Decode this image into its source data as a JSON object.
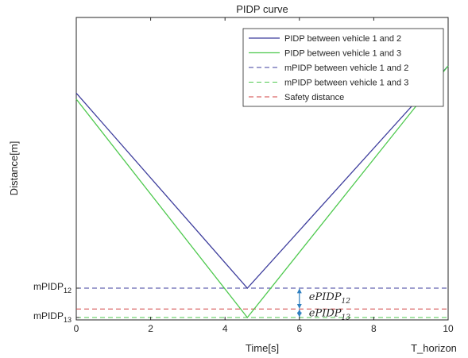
{
  "chart_data": {
    "type": "line",
    "title": "PIDP curve",
    "xlabel": "Time[s]",
    "ylabel": "Distance[m]",
    "xlim": [
      0,
      10
    ],
    "ylim": [
      0,
      100
    ],
    "xticks": [
      0,
      2,
      4,
      6,
      8,
      10
    ],
    "grid": false,
    "legend_position": "top-right",
    "extra_label": "T_horizon",
    "series": [
      {
        "name": "PIDP between vehicle 1 and 2",
        "color": "#3c3c9c",
        "style": "solid",
        "x": [
          0,
          4.6,
          10
        ],
        "y": [
          75,
          10.5,
          84
        ]
      },
      {
        "name": "PIDP between vehicle 1 and 3",
        "color": "#4ec94e",
        "style": "solid",
        "x": [
          0,
          4.6,
          10
        ],
        "y": [
          73,
          0.8,
          84
        ]
      },
      {
        "name": "mPIDP between vehicle 1 and 2",
        "color": "#3c3c9c",
        "style": "dashed",
        "x": [
          0,
          10
        ],
        "y": [
          10.5,
          10.5
        ]
      },
      {
        "name": "mPIDP between vehicle 1 and 3",
        "color": "#4ec94e",
        "style": "dashed",
        "x": [
          0,
          10
        ],
        "y": [
          0.8,
          0.8
        ]
      },
      {
        "name": "Safety distance",
        "color": "#d04040",
        "style": "dashed",
        "x": [
          0,
          10
        ],
        "y": [
          3.6,
          3.6
        ]
      }
    ],
    "y_tick_labels": [
      {
        "base": "mPIDP",
        "sub": "12",
        "y": 10.5
      },
      {
        "base": "mPIDP",
        "sub": "13",
        "y": 0.8
      }
    ],
    "annotations": [
      {
        "base": "ePIDP",
        "sub": "12",
        "x": 6,
        "y_from": 3.6,
        "y_to": 10.5
      },
      {
        "base": "ePIDP",
        "sub": "13",
        "x": 6,
        "y_from": 0.8,
        "y_to": 3.6
      }
    ],
    "arrow_color": "#2f7fc0"
  }
}
